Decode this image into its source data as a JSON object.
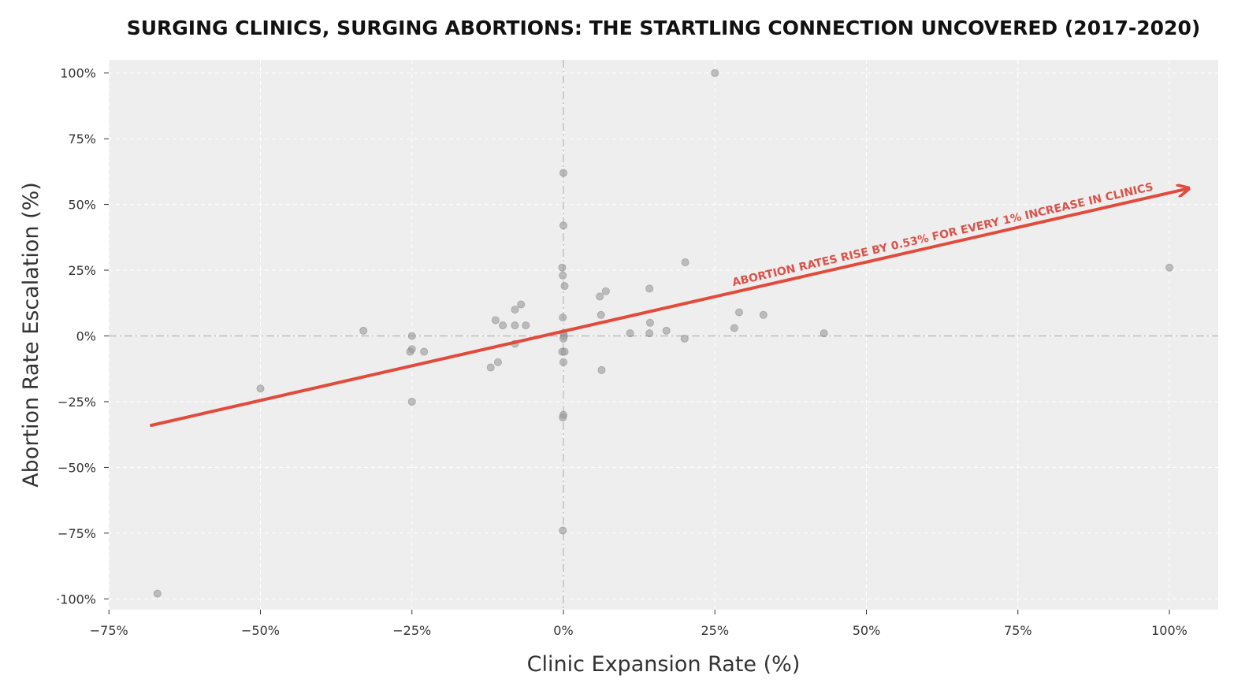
{
  "chart_data": {
    "type": "scatter",
    "title": "SURGING CLINICS, SURGING ABORTIONS: THE STARTLING CONNECTION UNCOVERED (2017-2020)",
    "xlabel": "Clinic Expansion Rate (%)",
    "ylabel": "Abortion Rate Escalation (%)",
    "xlim": [
      -75,
      108
    ],
    "ylim": [
      -104,
      105
    ],
    "xticks": [
      -75,
      -50,
      -25,
      0,
      25,
      50,
      75,
      100
    ],
    "xtick_labels": [
      "−75%",
      "−50%",
      "−25%",
      "0%",
      "25%",
      "50%",
      "75%",
      "100%"
    ],
    "yticks": [
      100,
      75,
      50,
      25,
      0,
      -25,
      -50,
      -75,
      -100
    ],
    "ytick_labels": [
      "100%",
      "75%",
      "50%",
      "25%",
      "0%",
      "−25%",
      "−50%",
      "−75%",
      "·100%"
    ],
    "grid": true,
    "background": "#eeeeee",
    "point_color": "#9a9a9a",
    "trend_color": "#e24a3b",
    "points": [
      {
        "x": -67,
        "y": -98
      },
      {
        "x": -50,
        "y": -20
      },
      {
        "x": -33,
        "y": 2
      },
      {
        "x": -25,
        "y": 0
      },
      {
        "x": -25,
        "y": -5
      },
      {
        "x": -25.3,
        "y": -6
      },
      {
        "x": -23,
        "y": -6
      },
      {
        "x": -25,
        "y": -25
      },
      {
        "x": -12,
        "y": -12
      },
      {
        "x": -11.2,
        "y": 6
      },
      {
        "x": -10.8,
        "y": -10
      },
      {
        "x": -10,
        "y": 4
      },
      {
        "x": -8,
        "y": 10
      },
      {
        "x": -8,
        "y": 4
      },
      {
        "x": -8,
        "y": -3
      },
      {
        "x": -7,
        "y": 12
      },
      {
        "x": -6.2,
        "y": 4
      },
      {
        "x": 0,
        "y": 62
      },
      {
        "x": 0,
        "y": 42
      },
      {
        "x": -0.2,
        "y": 26
      },
      {
        "x": -0.1,
        "y": 23
      },
      {
        "x": 0.2,
        "y": 19
      },
      {
        "x": -0.1,
        "y": 7
      },
      {
        "x": 0,
        "y": 1
      },
      {
        "x": 0.1,
        "y": 0
      },
      {
        "x": 0,
        "y": -1
      },
      {
        "x": -0.2,
        "y": -6
      },
      {
        "x": 0.2,
        "y": -6
      },
      {
        "x": 0,
        "y": -10
      },
      {
        "x": 0,
        "y": -30
      },
      {
        "x": -0.1,
        "y": -31
      },
      {
        "x": -0.1,
        "y": -74
      },
      {
        "x": 6,
        "y": 15
      },
      {
        "x": 7,
        "y": 17
      },
      {
        "x": 6.2,
        "y": 8
      },
      {
        "x": 6.3,
        "y": -13
      },
      {
        "x": 11,
        "y": 1
      },
      {
        "x": 14.2,
        "y": 18
      },
      {
        "x": 14.3,
        "y": 5
      },
      {
        "x": 14.2,
        "y": 1
      },
      {
        "x": 17,
        "y": 2
      },
      {
        "x": 20.1,
        "y": 28
      },
      {
        "x": 20,
        "y": -1
      },
      {
        "x": 25,
        "y": 100
      },
      {
        "x": 28.2,
        "y": 3
      },
      {
        "x": 29,
        "y": 9
      },
      {
        "x": 33,
        "y": 8
      },
      {
        "x": 43,
        "y": 1
      },
      {
        "x": 100,
        "y": 26
      }
    ],
    "trend_arrow": {
      "x0": -68,
      "y0": -34,
      "x1": 103,
      "y1": 56
    },
    "annotation": "ABORTION RATES RISE BY 0.53% FOR EVERY 1% INCREASE IN CLINICS"
  }
}
